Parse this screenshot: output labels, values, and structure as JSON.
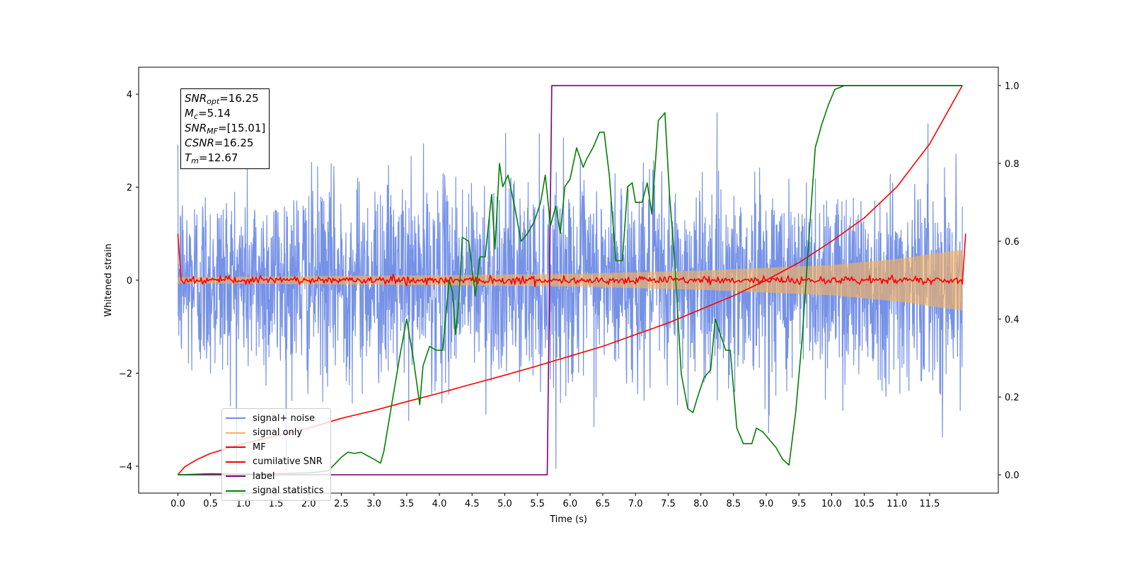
{
  "chart_data": {
    "type": "line",
    "xlabel": "Time (s)",
    "ylabel": "Whitened strain",
    "xlim": [
      -0.6,
      12.55
    ],
    "ylim": [
      -4.58,
      4.58
    ],
    "y2lim": [
      -0.047,
      1.047
    ],
    "x_ticks": [
      "0.0",
      "0.5",
      "1.0",
      "1.5",
      "2.0",
      "2.5",
      "3.0",
      "3.5",
      "4.0",
      "4.5",
      "5.0",
      "5.5",
      "6.0",
      "6.5",
      "7.0",
      "7.5",
      "8.0",
      "8.5",
      "9.0",
      "9.5",
      "10.0",
      "10.5",
      "11.0",
      "11.5"
    ],
    "y_ticks": [
      "4",
      "2",
      "0",
      "−2",
      "−4"
    ],
    "y2_ticks": [
      "1.0",
      "0.8",
      "0.6",
      "0.4",
      "0.2",
      "0.0"
    ],
    "grid": false,
    "legend_position": "lower-left",
    "annotation": {
      "lines": [
        {
          "name": "SNR",
          "sub": "opt",
          "value": "=16.25"
        },
        {
          "name": "M",
          "sub": "c",
          "value": "=5.14"
        },
        {
          "name": "SNR",
          "sub": "MF",
          "value": "=[15.01]"
        },
        {
          "name": "CSNR",
          "sub": "",
          "value": "=16.25"
        },
        {
          "name": "T",
          "sub": "m",
          "value": "=12.67"
        }
      ]
    },
    "series": [
      {
        "name": "signal+ noise",
        "axis": "left",
        "color": "#6f8ce6",
        "style": "noise",
        "description_values": {
          "t_start": 0.0,
          "t_end": 12.0,
          "typical_range": [
            -2.5,
            2.5
          ],
          "max": 4.15,
          "min": -4.1
        }
      },
      {
        "name": "signal only",
        "axis": "left",
        "color": "#f5b060",
        "style": "chirp",
        "envelope": {
          "x": [
            0.0,
            2.0,
            4.0,
            6.0,
            8.0,
            10.0,
            11.0,
            12.0
          ],
          "amplitude": [
            0.06,
            0.08,
            0.1,
            0.13,
            0.2,
            0.32,
            0.45,
            0.65
          ]
        }
      },
      {
        "name": "MF",
        "axis": "left",
        "color": "#ff0000",
        "style": "jitter",
        "x": [
          0.0,
          0.05,
          12.0,
          12.05
        ],
        "y": [
          1.0,
          0.0,
          0.0,
          1.0
        ],
        "jitter_amplitude": 0.07
      },
      {
        "name": "cumilative SNR",
        "axis": "right",
        "color": "#ff0000",
        "style": "line",
        "x": [
          0.0,
          0.1,
          0.3,
          0.5,
          1.0,
          1.5,
          2.0,
          2.5,
          3.0,
          3.5,
          4.0,
          4.5,
          5.0,
          5.5,
          6.0,
          6.5,
          7.0,
          7.5,
          8.0,
          8.5,
          9.0,
          9.5,
          10.0,
          10.5,
          11.0,
          11.5,
          12.0
        ],
        "y": [
          0.0,
          0.02,
          0.04,
          0.055,
          0.08,
          0.1,
          0.12,
          0.145,
          0.165,
          0.188,
          0.21,
          0.233,
          0.256,
          0.28,
          0.305,
          0.33,
          0.36,
          0.39,
          0.425,
          0.46,
          0.5,
          0.545,
          0.6,
          0.66,
          0.74,
          0.85,
          1.0
        ]
      },
      {
        "name": "label",
        "axis": "right",
        "color": "#800080",
        "style": "line",
        "x": [
          0.0,
          5.65,
          5.72,
          12.0
        ],
        "y": [
          0.0,
          0.0,
          1.0,
          1.0
        ]
      },
      {
        "name": "signal statistics",
        "axis": "right",
        "color": "#008000",
        "style": "line",
        "x": [
          0.0,
          0.5,
          1.0,
          1.5,
          2.0,
          2.3,
          2.5,
          2.6,
          2.7,
          2.8,
          3.0,
          3.1,
          3.15,
          3.25,
          3.4,
          3.5,
          3.6,
          3.7,
          3.75,
          3.85,
          3.95,
          4.05,
          4.15,
          4.2,
          4.25,
          4.3,
          4.35,
          4.45,
          4.55,
          4.62,
          4.7,
          4.8,
          4.85,
          4.92,
          4.97,
          5.05,
          5.15,
          5.25,
          5.35,
          5.45,
          5.55,
          5.62,
          5.7,
          5.78,
          5.85,
          5.92,
          6.0,
          6.1,
          6.2,
          6.25,
          6.35,
          6.45,
          6.52,
          6.6,
          6.7,
          6.8,
          6.88,
          6.95,
          7.0,
          7.1,
          7.18,
          7.25,
          7.35,
          7.45,
          7.52,
          7.6,
          7.7,
          7.8,
          7.88,
          7.95,
          8.05,
          8.15,
          8.22,
          8.3,
          8.38,
          8.45,
          8.55,
          8.65,
          8.78,
          8.85,
          8.95,
          9.05,
          9.15,
          9.25,
          9.35,
          9.45,
          9.55,
          9.65,
          9.75,
          9.85,
          9.95,
          10.05,
          10.2,
          10.5,
          11.0,
          11.5,
          12.0
        ],
        "y": [
          0.0,
          0.003,
          0.002,
          0.003,
          0.005,
          0.01,
          0.045,
          0.058,
          0.055,
          0.058,
          0.04,
          0.03,
          0.06,
          0.16,
          0.31,
          0.4,
          0.3,
          0.18,
          0.28,
          0.33,
          0.32,
          0.32,
          0.5,
          0.47,
          0.36,
          0.45,
          0.61,
          0.6,
          0.46,
          0.56,
          0.56,
          0.72,
          0.58,
          0.8,
          0.74,
          0.77,
          0.69,
          0.6,
          0.62,
          0.65,
          0.7,
          0.77,
          0.64,
          0.69,
          0.62,
          0.74,
          0.76,
          0.84,
          0.79,
          0.81,
          0.84,
          0.88,
          0.88,
          0.77,
          0.55,
          0.55,
          0.74,
          0.75,
          0.7,
          0.7,
          0.75,
          0.67,
          0.91,
          0.93,
          0.72,
          0.55,
          0.26,
          0.17,
          0.16,
          0.2,
          0.25,
          0.27,
          0.4,
          0.36,
          0.32,
          0.32,
          0.12,
          0.08,
          0.08,
          0.12,
          0.11,
          0.09,
          0.07,
          0.04,
          0.025,
          0.16,
          0.35,
          0.6,
          0.84,
          0.9,
          0.95,
          0.99,
          1.0,
          1.0,
          1.0,
          1.0,
          1.0
        ]
      }
    ]
  }
}
